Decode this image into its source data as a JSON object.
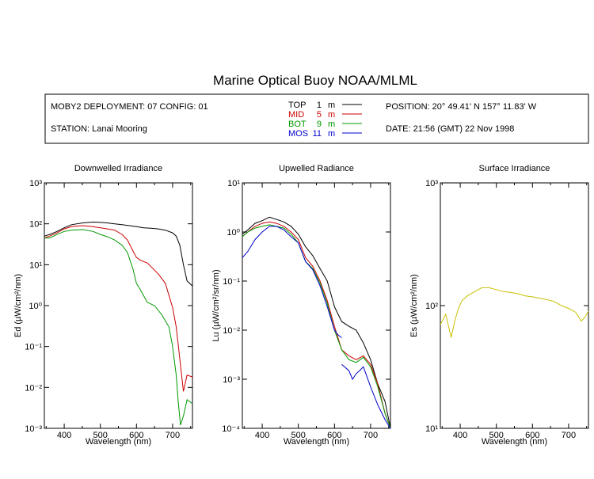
{
  "page_title": "Marine Optical Buoy NOAA/MLML",
  "info": {
    "deployment": "MOBY2 DEPLOYMENT: 07 CONFIG: 01",
    "station": "STATION: Lanai Mooring",
    "position": "POSITION: 20° 49.41' N   157° 11.83' W",
    "date": "DATE: 21:56 (GMT) 22 Nov 1998"
  },
  "legend": [
    {
      "label": "TOP",
      "depth": "1",
      "unit": "m",
      "color": "#000000"
    },
    {
      "label": "MID",
      "depth": "5",
      "unit": "m",
      "color": "#cc0000"
    },
    {
      "label": "BOT",
      "depth": "9",
      "unit": "m",
      "color": "#009900"
    },
    {
      "label": "MOS",
      "depth": "11",
      "unit": "m",
      "color": "#0000cc"
    }
  ],
  "chart_data": [
    {
      "type": "line",
      "title": "Downwelled Irradiance",
      "xlabel": "Wavelength (nm)",
      "ylabel": "Ed  (µW/cm²/nm)",
      "xlim": [
        345,
        755
      ],
      "ylim": [
        0.001,
        1000
      ],
      "yscale": "log",
      "xticks": [
        400,
        500,
        600,
        700
      ],
      "yticks": [
        "10⁻³",
        "10⁻²",
        "10⁻¹",
        "10⁰",
        "10¹",
        "10²",
        "10³"
      ],
      "series": [
        {
          "name": "TOP",
          "color": "#000000",
          "x": [
            345,
            360,
            380,
            400,
            420,
            450,
            480,
            500,
            520,
            540,
            560,
            580,
            600,
            620,
            640,
            660,
            680,
            700,
            710,
            720,
            730,
            740,
            755
          ],
          "y": [
            50,
            55,
            65,
            80,
            95,
            105,
            110,
            108,
            105,
            100,
            95,
            90,
            85,
            80,
            78,
            75,
            70,
            60,
            50,
            30,
            10,
            4,
            3
          ]
        },
        {
          "name": "MID",
          "color": "#cc0000",
          "x": [
            345,
            360,
            380,
            400,
            420,
            450,
            480,
            500,
            520,
            540,
            560,
            575,
            590,
            600,
            610,
            630,
            660,
            680,
            700,
            710,
            720,
            730,
            740,
            755
          ],
          "y": [
            45,
            50,
            60,
            75,
            85,
            90,
            85,
            80,
            75,
            70,
            55,
            40,
            22,
            15,
            13,
            11,
            6,
            3.5,
            0.9,
            0.3,
            0.05,
            0.008,
            0.02,
            0.018
          ]
        },
        {
          "name": "BOT",
          "color": "#009900",
          "x": [
            345,
            360,
            380,
            400,
            420,
            450,
            480,
            500,
            520,
            540,
            560,
            575,
            590,
            600,
            610,
            630,
            650,
            670,
            690,
            700,
            710,
            715,
            722,
            730,
            740,
            755
          ],
          "y": [
            45,
            45,
            55,
            65,
            70,
            72,
            65,
            55,
            48,
            40,
            30,
            20,
            8,
            3.5,
            2.5,
            1.2,
            1.0,
            0.6,
            0.3,
            0.1,
            0.02,
            0.005,
            0.0012,
            0.002,
            0.005,
            0.004
          ]
        }
      ]
    },
    {
      "type": "line",
      "title": "Upwelled Radiance",
      "xlabel": "Wavelength (nm)",
      "ylabel": "Lu  (µW/cm²/sr/nm)",
      "xlim": [
        345,
        755
      ],
      "ylim": [
        0.0001,
        10
      ],
      "yscale": "log",
      "xticks": [
        400,
        500,
        600,
        700
      ],
      "yticks": [
        "10⁻⁴",
        "10⁻³",
        "10⁻²",
        "10⁻¹",
        "10⁰",
        "10¹"
      ],
      "series": [
        {
          "name": "TOP",
          "color": "#000000",
          "x": [
            345,
            360,
            380,
            400,
            420,
            440,
            460,
            480,
            500,
            520,
            540,
            560,
            580,
            600,
            620,
            640,
            660,
            680,
            700,
            720,
            740,
            755
          ],
          "y": [
            0.9,
            1.1,
            1.5,
            1.7,
            2.0,
            1.8,
            1.6,
            1.3,
            0.9,
            0.5,
            0.33,
            0.18,
            0.1,
            0.03,
            0.015,
            0.012,
            0.01,
            0.0055,
            0.0025,
            0.0008,
            0.00035,
            0.0001
          ]
        },
        {
          "name": "MID",
          "color": "#cc0000",
          "x": [
            345,
            360,
            380,
            400,
            420,
            440,
            460,
            480,
            500,
            520,
            540,
            560,
            580,
            600,
            620,
            640,
            660,
            680,
            700,
            720,
            740,
            755
          ],
          "y": [
            0.8,
            1.0,
            1.3,
            1.5,
            1.6,
            1.5,
            1.3,
            1.0,
            0.7,
            0.3,
            0.2,
            0.1,
            0.04,
            0.012,
            0.004,
            0.003,
            0.0025,
            0.003,
            0.002,
            0.0008,
            0.0002,
            0.0001
          ]
        },
        {
          "name": "BOT",
          "color": "#009900",
          "x": [
            345,
            360,
            380,
            400,
            420,
            440,
            460,
            480,
            500,
            520,
            540,
            560,
            580,
            600,
            620,
            640,
            660,
            680,
            700,
            720,
            740,
            755
          ],
          "y": [
            0.8,
            1.0,
            1.2,
            1.3,
            1.4,
            1.3,
            1.2,
            0.9,
            0.6,
            0.25,
            0.18,
            0.09,
            0.035,
            0.01,
            0.004,
            0.0025,
            0.0022,
            0.0028,
            0.0018,
            0.0007,
            0.0002,
            0.0001
          ]
        },
        {
          "name": "MOS",
          "color": "#0000cc",
          "segments": [
            {
              "x": [
                345,
                360,
                380,
                400,
                420,
                440,
                460,
                480,
                500,
                520,
                540,
                560,
                580,
                600,
                610,
                620
              ],
              "y": [
                0.3,
                0.4,
                0.7,
                1.0,
                1.3,
                1.3,
                1.1,
                0.8,
                0.6,
                0.25,
                0.17,
                0.08,
                0.03,
                0.01,
                0.008,
                0.007
              ]
            },
            {
              "x": [
                620,
                640,
                650,
                660,
                670,
                680,
                700,
                720,
                740,
                755
              ],
              "y": [
                0.002,
                0.0015,
                0.001,
                0.0013,
                0.0015,
                0.0018,
                0.0007,
                0.0003,
                0.00015,
                0.0001
              ]
            }
          ]
        }
      ]
    },
    {
      "type": "line",
      "title": "Surface Irradiance",
      "xlabel": "Wavelength (nm)",
      "ylabel": "Es  (µW/cm²/nm)",
      "xlim": [
        345,
        755
      ],
      "ylim": [
        10,
        1000
      ],
      "yscale": "log",
      "xticks": [
        400,
        500,
        600,
        700
      ],
      "yticks": [
        "10¹",
        "10²",
        "10³"
      ],
      "series": [
        {
          "name": "Es",
          "color": "#c8c000",
          "x": [
            345,
            360,
            375,
            385,
            395,
            405,
            420,
            440,
            460,
            480,
            500,
            520,
            540,
            560,
            580,
            600,
            620,
            640,
            660,
            680,
            700,
            720,
            735,
            745,
            755
          ],
          "y": [
            70,
            85,
            55,
            75,
            95,
            110,
            120,
            130,
            140,
            140,
            135,
            130,
            128,
            125,
            120,
            118,
            115,
            112,
            108,
            100,
            95,
            88,
            75,
            80,
            90
          ]
        }
      ]
    }
  ]
}
